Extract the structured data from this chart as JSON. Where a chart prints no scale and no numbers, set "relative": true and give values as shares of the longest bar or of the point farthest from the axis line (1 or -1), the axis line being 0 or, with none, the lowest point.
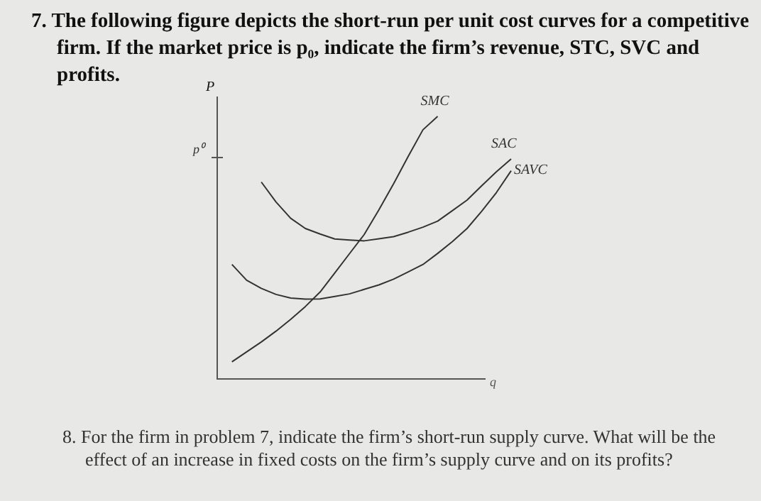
{
  "chart_data": {
    "type": "line",
    "relative": true,
    "title": "7. The following figure depicts the short-run per unit cost curves for a competitive firm. If the market price is p₀, indicate the firm’s revenue, STC, SVC and profits.",
    "xlabel": "q",
    "ylabel": "P",
    "legend": false,
    "marker": "none",
    "line_style": "solid",
    "categories": [
      null,
      null,
      null,
      null,
      null,
      null,
      null,
      null,
      null,
      null,
      null,
      null,
      null,
      null,
      null,
      null,
      null,
      null,
      null,
      null,
      null
    ],
    "series": [
      {
        "name": "SMC",
        "color": "#333333",
        "values": [
          null,
          0.065,
          0.103,
          0.141,
          0.182,
          0.227,
          0.276,
          0.331,
          0.404,
          0.477,
          0.55,
          0.644,
          0.743,
          0.848,
          0.949,
          1,
          null,
          null,
          null,
          null,
          null
        ]
      },
      {
        "name": "SAC",
        "color": "#333333",
        "values": [
          null,
          null,
          null,
          0.75,
          0.674,
          0.612,
          0.573,
          0.552,
          0.533,
          0.529,
          0.526,
          0.534,
          0.542,
          0.559,
          0.578,
          0.601,
          0.641,
          0.681,
          0.736,
          0.789,
          0.838
        ]
      },
      {
        "name": "SAVC",
        "color": "#333333",
        "values": [
          null,
          0.436,
          0.376,
          0.345,
          0.322,
          0.308,
          0.304,
          0.305,
          0.314,
          0.324,
          0.341,
          0.358,
          0.38,
          0.408,
          0.436,
          0.478,
          0.523,
          0.573,
          0.639,
          0.71,
          0.793
        ]
      }
    ],
    "annotations": [
      "p⁰",
      "8. For the firm in problem 7, indicate the firm’s short-run supply curve. What will be the effect of an increase in fixed costs on the firm’s supply curve and on its profits?"
    ]
  }
}
